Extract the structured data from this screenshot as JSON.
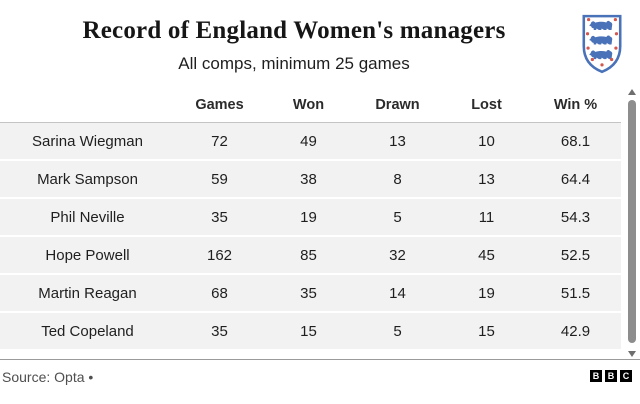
{
  "header": {
    "title": "Record of England Women's managers",
    "subtitle": "All comps, minimum 25 games",
    "crest_icon": "england-fa-three-lions-crest"
  },
  "chart_data": {
    "type": "table",
    "title": "Record of England Women's managers",
    "subtitle": "All comps, minimum 25 games",
    "columns": [
      "",
      "Games",
      "Won",
      "Drawn",
      "Lost",
      "Win %"
    ],
    "rows": [
      [
        "Sarina Wiegman",
        72,
        49,
        13,
        10,
        68.1
      ],
      [
        "Mark Sampson",
        59,
        38,
        8,
        13,
        64.4
      ],
      [
        "Phil Neville",
        35,
        19,
        5,
        11,
        54.3
      ],
      [
        "Hope Powell",
        162,
        85,
        32,
        45,
        52.5
      ],
      [
        "Martin Reagan",
        68,
        35,
        14,
        19,
        51.5
      ],
      [
        "Ted Copeland",
        35,
        15,
        5,
        15,
        42.9
      ]
    ]
  },
  "colors": {
    "row_background": "#f2f2f2",
    "crest_blue": "#4a72b8",
    "crest_rose_red": "#d2574d",
    "text": "#1f1f1f",
    "source_text": "#4f4f4f"
  },
  "footer": {
    "source_label": "Source: Opta •",
    "bbc_letters": [
      "B",
      "B",
      "C"
    ]
  }
}
